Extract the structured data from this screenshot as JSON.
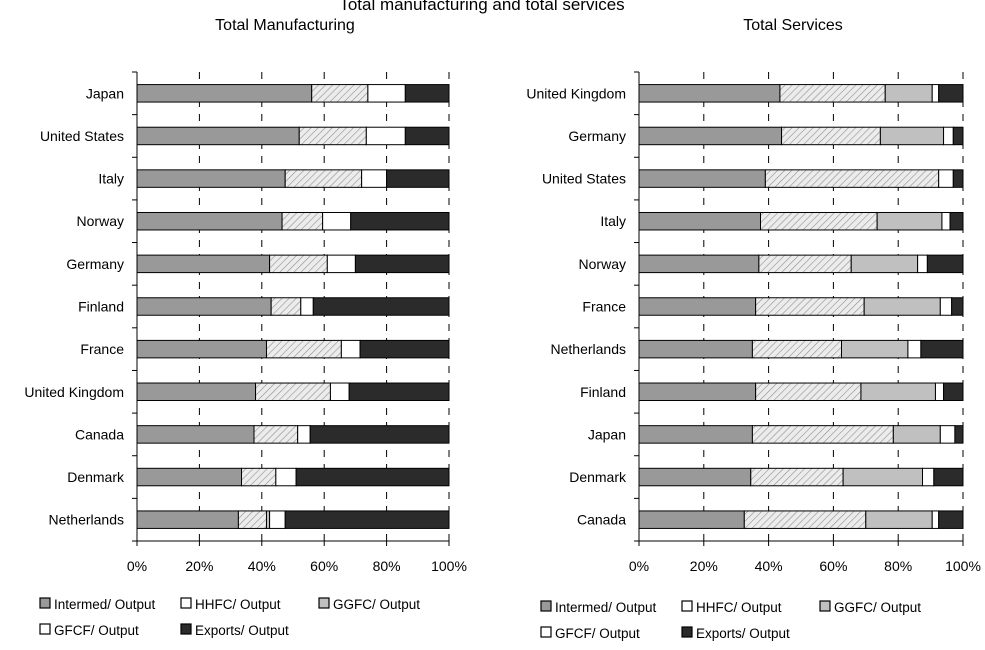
{
  "figure_title": "Total manufacturing and total services",
  "legend_labels": [
    "Intermed/ Output",
    "HHFC/ Output",
    "GGFC/ Output",
    "GFCF/ Output",
    "Exports/ Output"
  ],
  "colors": {
    "intermed": "#999999",
    "hhfc": "#ececec",
    "hhfc_hatch": "#909090",
    "ggfc": "#c0c0c0",
    "gfcf": "#ffffff",
    "exports": "#2b2b2b",
    "outline": "#000000"
  },
  "chart_data": [
    {
      "type": "bar",
      "orientation": "horizontal",
      "stacked": true,
      "title": "Total Manufacturing",
      "xlim": [
        0,
        100
      ],
      "x_ticks": [
        "0%",
        "20%",
        "40%",
        "60%",
        "80%",
        "100%"
      ],
      "grid": "vertical dashed",
      "legend_position": "bottom",
      "categories": [
        "Japan",
        "United States",
        "Italy",
        "Norway",
        "Germany",
        "Finland",
        "France",
        "United Kingdom",
        "Canada",
        "Denmark",
        "Netherlands"
      ],
      "series": [
        {
          "name": "Intermed/ Output",
          "values": [
            56,
            52,
            47.5,
            46.5,
            42.5,
            43,
            41.5,
            38,
            37.5,
            33.5,
            32.5
          ]
        },
        {
          "name": "HHFC/ Output",
          "values": [
            18,
            21.5,
            24.5,
            13,
            18.5,
            9.5,
            24,
            24,
            14,
            11,
            9
          ]
        },
        {
          "name": "GGFC/ Output",
          "values": [
            0,
            0,
            0,
            0,
            0,
            0,
            0,
            0,
            0,
            0,
            1
          ]
        },
        {
          "name": "GFCF/ Output",
          "values": [
            12,
            12.5,
            8,
            9,
            9,
            4,
            6,
            6,
            4,
            6.5,
            5
          ]
        },
        {
          "name": "Exports/ Output",
          "values": [
            14,
            14,
            20,
            31.5,
            30,
            43.5,
            28.5,
            32,
            44.5,
            49,
            52.5
          ]
        }
      ]
    },
    {
      "type": "bar",
      "orientation": "horizontal",
      "stacked": true,
      "title": "Total Services",
      "xlim": [
        0,
        100
      ],
      "x_ticks": [
        "0%",
        "20%",
        "40%",
        "60%",
        "80%",
        "100%"
      ],
      "grid": "vertical dashed",
      "legend_position": "bottom",
      "categories": [
        "United Kingdom",
        "Germany",
        "United States",
        "Italy",
        "Norway",
        "France",
        "Netherlands",
        "Finland",
        "Japan",
        "Denmark",
        "Canada"
      ],
      "series": [
        {
          "name": "Intermed/ Output",
          "values": [
            43.5,
            44,
            39,
            37.5,
            37,
            36,
            35,
            36,
            35,
            34.5,
            32.5
          ]
        },
        {
          "name": "HHFC/ Output",
          "values": [
            32.5,
            30.5,
            53.5,
            36,
            28.5,
            33.5,
            27.5,
            32.5,
            43.5,
            28.5,
            37.5
          ]
        },
        {
          "name": "GGFC/ Output",
          "values": [
            14.5,
            19.5,
            0,
            20,
            20.5,
            23.5,
            20.5,
            23,
            14.5,
            24.5,
            20.5
          ]
        },
        {
          "name": "GFCF/ Output",
          "values": [
            2,
            3,
            4.5,
            2.5,
            3,
            3.5,
            4,
            2.5,
            4.5,
            3.5,
            2
          ]
        },
        {
          "name": "Exports/ Output",
          "values": [
            7.5,
            3,
            3,
            4,
            11,
            3.5,
            13,
            6,
            2.5,
            9,
            7.5
          ]
        }
      ]
    }
  ]
}
